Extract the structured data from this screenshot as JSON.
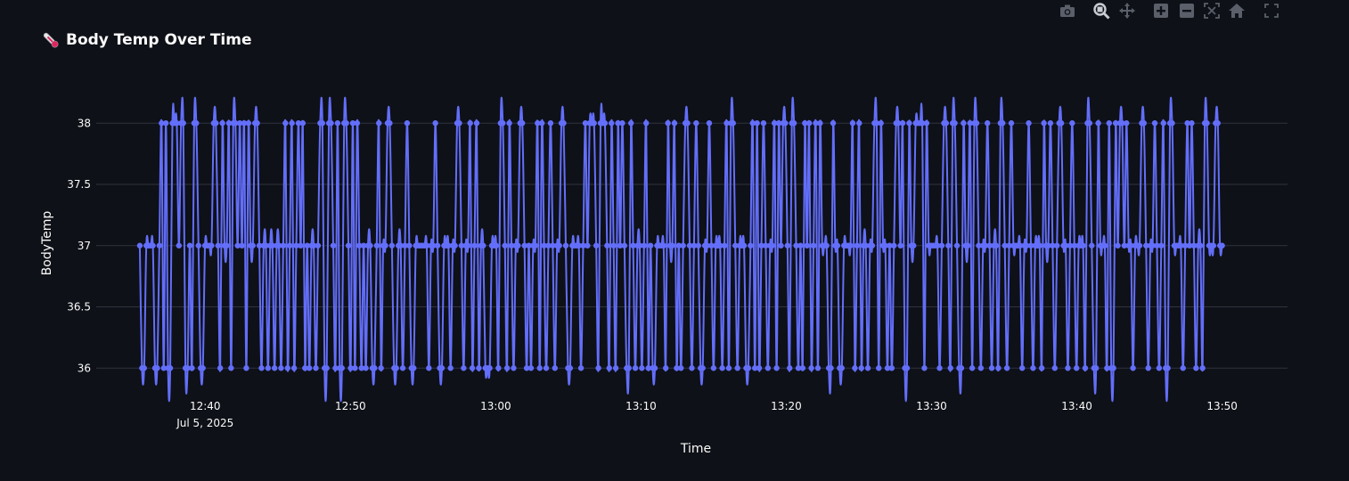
{
  "header": {
    "title": "Body Temp Over Time",
    "icon": "thermometer-icon"
  },
  "modebar": [
    {
      "name": "camera-icon",
      "label": "Download plot as png"
    },
    {
      "name": "zoom-icon",
      "label": "Zoom"
    },
    {
      "name": "pan-icon",
      "label": "Pan"
    },
    {
      "name": "zoom-in-icon",
      "label": "Zoom in"
    },
    {
      "name": "zoom-out-icon",
      "label": "Zoom out"
    },
    {
      "name": "autoscale-icon",
      "label": "Autoscale"
    },
    {
      "name": "home-icon",
      "label": "Reset axes"
    },
    {
      "name": "fullscreen-icon",
      "label": "Fullscreen"
    }
  ],
  "chart_data": {
    "type": "line",
    "title": "Body Temp Over Time",
    "xlabel": "Time",
    "ylabel": "BodyTemp",
    "x_start": "2025-07-05 12:35:30",
    "x_end": "2025-07-05 13:50:00",
    "xlim": [
      "2025-07-05 12:32:30",
      "2025-07-05 13:54:30"
    ],
    "ylim": [
      35.9,
      38.3
    ],
    "x_ticks": [
      {
        "label": "12:40",
        "sub": "Jul 5, 2025",
        "minute": 40
      },
      {
        "label": "12:50",
        "sub": "",
        "minute": 50
      },
      {
        "label": "13:00",
        "sub": "",
        "minute": 60
      },
      {
        "label": "13:10",
        "sub": "",
        "minute": 70
      },
      {
        "label": "13:20",
        "sub": "",
        "minute": 80
      },
      {
        "label": "13:30",
        "sub": "",
        "minute": 90
      },
      {
        "label": "13:40",
        "sub": "",
        "minute": 100
      },
      {
        "label": "13:50",
        "sub": "",
        "minute": 110
      }
    ],
    "y_ticks": [
      36,
      36.5,
      37,
      37.5,
      38
    ],
    "grid": true,
    "line_color": "#636efa",
    "series": [
      {
        "values": [
          37,
          36,
          36,
          37,
          37,
          37,
          37,
          36,
          36,
          37,
          38,
          36,
          38,
          36,
          36,
          38,
          38,
          38,
          37,
          38,
          38,
          36,
          36,
          37,
          36,
          38,
          38,
          37,
          36,
          36,
          37,
          37,
          37,
          37,
          38,
          38,
          37,
          36,
          38,
          37,
          37,
          38,
          36,
          38,
          38,
          37,
          38,
          37,
          38,
          36,
          38,
          37,
          37,
          38,
          38,
          37,
          36,
          37,
          37,
          36,
          37,
          37,
          36,
          37,
          37,
          36,
          37,
          38,
          36,
          37,
          38,
          36,
          37,
          38,
          37,
          38,
          36,
          37,
          36,
          37,
          37,
          36,
          37,
          38,
          38,
          36,
          36,
          38,
          38,
          37,
          36,
          38,
          36,
          36,
          38,
          38,
          37,
          36,
          38,
          36,
          38,
          37,
          36,
          37,
          36,
          37,
          37,
          36,
          36,
          37,
          38,
          36,
          37,
          37,
          38,
          38,
          37,
          36,
          36,
          37,
          37,
          36,
          37,
          38,
          37,
          36,
          36,
          37,
          37,
          37,
          37,
          37,
          37,
          36,
          37,
          37,
          38,
          37,
          36,
          36,
          37,
          37,
          37,
          36,
          37,
          37,
          38,
          38,
          37,
          36,
          37,
          37,
          38,
          36,
          37,
          38,
          36,
          37,
          37,
          36,
          36,
          36,
          37,
          37,
          37,
          36,
          38,
          38,
          37,
          36,
          38,
          37,
          36,
          37,
          37,
          38,
          38,
          37,
          36,
          37,
          36,
          37,
          37,
          38,
          36,
          38,
          37,
          36,
          37,
          38,
          37,
          36,
          37,
          37,
          38,
          38,
          37,
          36,
          36,
          37,
          37,
          37,
          37,
          36,
          37,
          38,
          37,
          38,
          38,
          38,
          37,
          36,
          38,
          38,
          38,
          37,
          36,
          38,
          37,
          36,
          38,
          37,
          38,
          37,
          36,
          36,
          38,
          37,
          36,
          37,
          37,
          36,
          37,
          38,
          36,
          37,
          36,
          36,
          37,
          37,
          37,
          37,
          36,
          38,
          37,
          37,
          38,
          36,
          37,
          36,
          37,
          38,
          38,
          37,
          36,
          37,
          38,
          37,
          36,
          36,
          37,
          37,
          38,
          37,
          36,
          37,
          37,
          37,
          36,
          37,
          38,
          36,
          38,
          38,
          37,
          36,
          37,
          37,
          37,
          36,
          36,
          37,
          38,
          36,
          38,
          36,
          37,
          38,
          37,
          36,
          37,
          37,
          38,
          36,
          38,
          37,
          38,
          38,
          37,
          36,
          38,
          38,
          37,
          36,
          37,
          36,
          38,
          37,
          38,
          36,
          37,
          38,
          36,
          38,
          37,
          37,
          37,
          36,
          36,
          38,
          37,
          37,
          36,
          36,
          37,
          37,
          37,
          37,
          38,
          36,
          37,
          38,
          36,
          37,
          37,
          36,
          37,
          37,
          38,
          38,
          36,
          38,
          37,
          37,
          36,
          37,
          36,
          37,
          38,
          38,
          37,
          38,
          36,
          36,
          38,
          37,
          37,
          38,
          38,
          38,
          38,
          36,
          38,
          37,
          37,
          37,
          37,
          37,
          36,
          37,
          38,
          38,
          37,
          36,
          38,
          38,
          37,
          36,
          36,
          38,
          37,
          37,
          38,
          36,
          38,
          38,
          37,
          36,
          37,
          37,
          38,
          37,
          36,
          37,
          37,
          36,
          38,
          38,
          37,
          36,
          37,
          38,
          37,
          37,
          37,
          37,
          36,
          37,
          37,
          38,
          37,
          36,
          37,
          37,
          37,
          36,
          38,
          37,
          37,
          38,
          37,
          36,
          37,
          38,
          38,
          37,
          37,
          36,
          37,
          38,
          37,
          36,
          37,
          37,
          37,
          36,
          38,
          38,
          37,
          36,
          36,
          38,
          37,
          37,
          37,
          36,
          38,
          36,
          36,
          38,
          37,
          38,
          38,
          37,
          38,
          37,
          37,
          36,
          37,
          37,
          37,
          38,
          38,
          37,
          36,
          37,
          37,
          38,
          37,
          36,
          37,
          38,
          36,
          36,
          38,
          38,
          37,
          37,
          37,
          37,
          36,
          37,
          38,
          37,
          38,
          37,
          36,
          37,
          37,
          36,
          38,
          38,
          37,
          37,
          37,
          38,
          38,
          37,
          37
        ]
      }
    ]
  }
}
